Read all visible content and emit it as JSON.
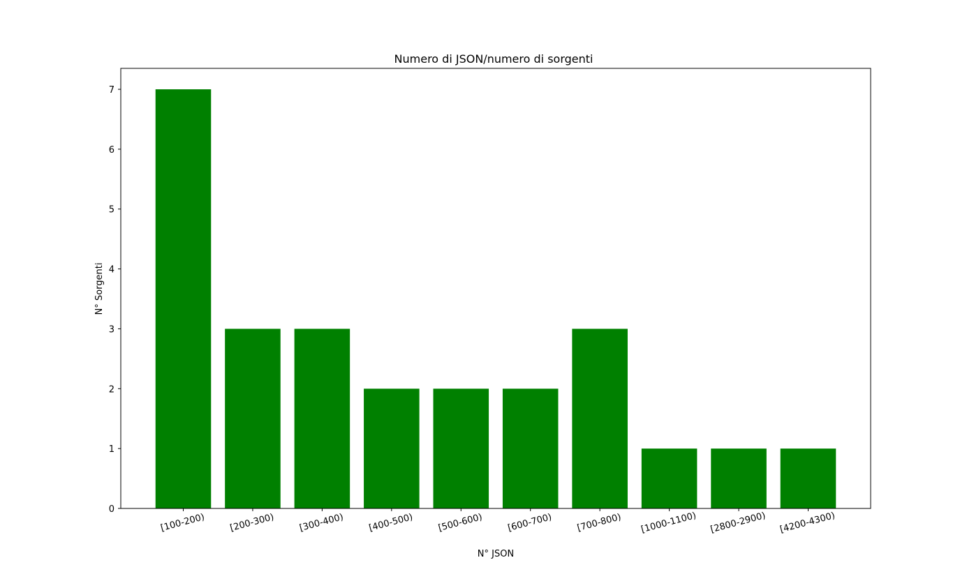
{
  "chart_data": {
    "type": "bar",
    "title": "Numero di JSON/numero di sorgenti",
    "xlabel": "N° JSON",
    "ylabel": "N° Sorgenti",
    "categories": [
      "[100-200)",
      "[200-300)",
      "[300-400)",
      "[400-500)",
      "[500-600)",
      "[600-700)",
      "[700-800)",
      "[1000-1100)",
      "[2800-2900)",
      "[4200-4300)"
    ],
    "values": [
      7,
      3,
      3,
      2,
      2,
      2,
      3,
      1,
      1,
      1
    ],
    "ylim": [
      0,
      7.35
    ],
    "yticks": [
      0,
      1,
      2,
      3,
      4,
      5,
      6,
      7
    ],
    "bar_color": "#008000",
    "grid": false,
    "legend": "none"
  }
}
